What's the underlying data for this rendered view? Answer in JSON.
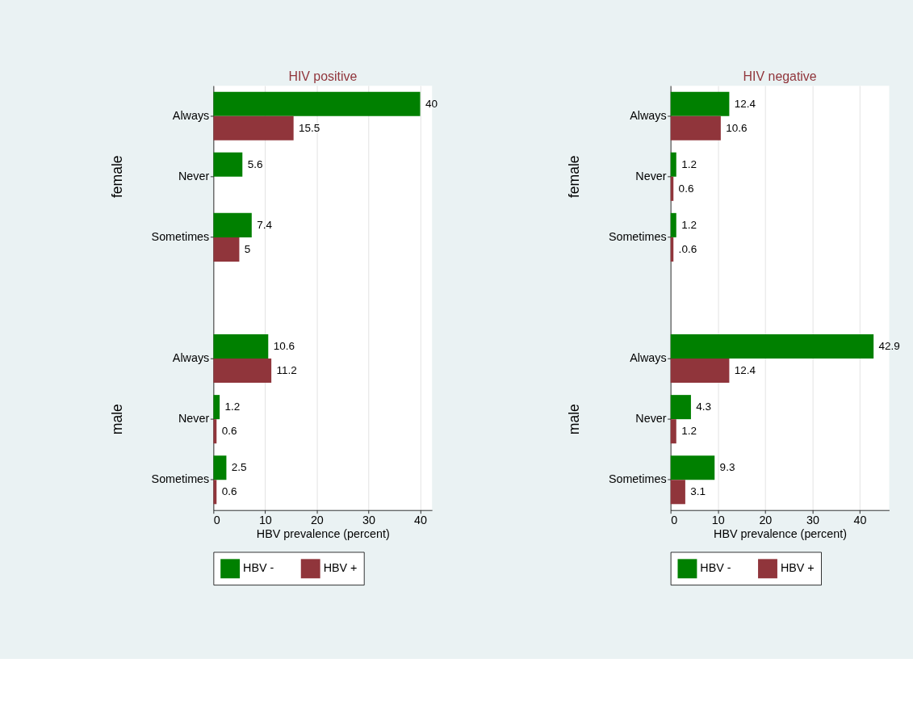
{
  "chart_data": [
    {
      "type": "bar",
      "orientation": "horizontal",
      "title": "HIV positive",
      "xlabel": "HBV prevalence (percent)",
      "categories": [
        "Always",
        "Never",
        "Sometimes",
        "Always",
        "Never",
        "Sometimes"
      ],
      "annotations": [
        "female",
        "male"
      ],
      "series": [
        {
          "name": "HBV -",
          "color": "#008000",
          "values": [
            40,
            5.6,
            7.4,
            10.6,
            1.2,
            2.5
          ],
          "value_labels": [
            "40",
            "5.6",
            "7.4",
            "10.6",
            "1.2",
            "2.5"
          ]
        },
        {
          "name": "HBV +",
          "color": "#90353b",
          "values": [
            15.5,
            null,
            5,
            11.2,
            0.6,
            0.6
          ],
          "value_labels": [
            "15.5",
            null,
            "5",
            "11.2",
            "0.6",
            "0.6"
          ]
        }
      ],
      "xlim": [
        0,
        42.3
      ],
      "xticks": [
        0,
        10,
        20,
        30,
        40
      ],
      "grid": "x",
      "legend": "bottom"
    },
    {
      "type": "bar",
      "orientation": "horizontal",
      "title": "HIV negative",
      "xlabel": "HBV prevalence (percent)",
      "categories": [
        "Always",
        "Never",
        "Sometimes",
        "Always",
        "Never",
        "Sometimes"
      ],
      "annotations": [
        "female",
        "male"
      ],
      "series": [
        {
          "name": "HBV -",
          "color": "#008000",
          "values": [
            12.4,
            1.2,
            1.2,
            42.9,
            4.3,
            9.3
          ],
          "value_labels": [
            "12.4",
            "1.2",
            "1.2",
            "42.9",
            "4.3",
            "9.3"
          ]
        },
        {
          "name": "HBV +",
          "color": "#90353b",
          "values": [
            10.6,
            0.6,
            0.6,
            12.4,
            1.2,
            3.1
          ],
          "value_labels": [
            "10.6",
            "0.6",
            ".0.6",
            "12.4",
            "1.2",
            "3.1"
          ]
        }
      ],
      "xlim": [
        0,
        46.2
      ],
      "xticks": [
        0,
        10,
        20,
        30,
        40
      ],
      "grid": "x",
      "legend": "bottom"
    }
  ]
}
